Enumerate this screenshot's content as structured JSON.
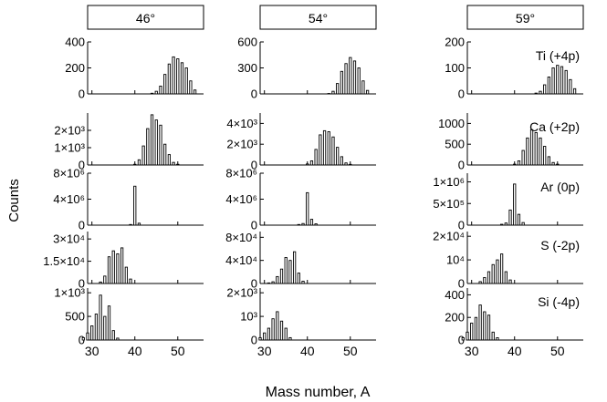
{
  "figure": {
    "ylabel": "Counts",
    "xlabel": "Mass number, A"
  },
  "chart_data": {
    "type": "bar",
    "xlabel": "Mass number, A",
    "ylabel": "Counts",
    "xlim": [
      29,
      56
    ],
    "xticks": [
      30,
      40,
      50
    ],
    "columns": [
      "46°",
      "54°",
      "59°"
    ],
    "rows": [
      "Ti (+4p)",
      "Ca (+2p)",
      "Ar (0p)",
      "S (-2p)",
      "Si (-4p)"
    ],
    "panels": [
      {
        "column": "46°",
        "row": "Ti (+4p)",
        "ylim": [
          0,
          400
        ],
        "ytick_values": [
          0,
          200,
          400
        ],
        "ytick_labels": [
          "0",
          "200",
          "400"
        ],
        "x": [
          44,
          45,
          46,
          47,
          48,
          49,
          50,
          51,
          52,
          53,
          54
        ],
        "values": [
          5,
          20,
          60,
          150,
          230,
          285,
          270,
          240,
          200,
          100,
          30
        ]
      },
      {
        "column": "54°",
        "row": "Ti (+4p)",
        "ylim": [
          0,
          600
        ],
        "ytick_values": [
          0,
          300,
          600
        ],
        "ytick_labels": [
          "0",
          "300",
          "600"
        ],
        "x": [
          45,
          46,
          47,
          48,
          49,
          50,
          51,
          52,
          53,
          54
        ],
        "values": [
          5,
          30,
          120,
          260,
          350,
          420,
          380,
          300,
          150,
          40
        ]
      },
      {
        "column": "59°",
        "row": "Ti (+4p)",
        "ylim": [
          0,
          200
        ],
        "ytick_values": [
          0,
          100,
          200
        ],
        "ytick_labels": [
          "0",
          "100",
          "200"
        ],
        "x": [
          45,
          46,
          47,
          48,
          49,
          50,
          51,
          52,
          53,
          54
        ],
        "values": [
          3,
          10,
          35,
          65,
          100,
          110,
          105,
          90,
          55,
          20
        ]
      },
      {
        "column": "46°",
        "row": "Ca (+2p)",
        "ylim": [
          0,
          3000
        ],
        "ytick_values": [
          0,
          1000,
          2000
        ],
        "ytick_labels": [
          "0",
          "1×10³",
          "2×10³"
        ],
        "x": [
          40,
          41,
          42,
          43,
          44,
          45,
          46,
          47,
          48,
          49,
          50
        ],
        "values": [
          40,
          300,
          1100,
          2100,
          2900,
          2600,
          2300,
          1200,
          600,
          150,
          40
        ]
      },
      {
        "column": "54°",
        "row": "Ca (+2p)",
        "ylim": [
          0,
          5000
        ],
        "ytick_values": [
          0,
          2000,
          4000
        ],
        "ytick_labels": [
          "0",
          "2×10³",
          "4×10³"
        ],
        "x": [
          40,
          41,
          42,
          43,
          44,
          45,
          46,
          47,
          48,
          49,
          50
        ],
        "values": [
          100,
          400,
          1500,
          2900,
          3300,
          3200,
          2700,
          1700,
          800,
          200,
          60
        ]
      },
      {
        "column": "59°",
        "row": "Ca (+2p)",
        "ylim": [
          0,
          1250
        ],
        "ytick_values": [
          0,
          500,
          1000
        ],
        "ytick_labels": [
          "0",
          "500",
          "1000"
        ],
        "x": [
          40,
          41,
          42,
          43,
          44,
          45,
          46,
          47,
          48,
          49,
          50
        ],
        "values": [
          20,
          100,
          350,
          650,
          850,
          780,
          650,
          450,
          200,
          60,
          20
        ]
      },
      {
        "column": "46°",
        "row": "Ar (0p)",
        "ylim": [
          0,
          8000000
        ],
        "ytick_values": [
          0,
          4000000,
          8000000
        ],
        "ytick_labels": [
          "0",
          "4×10⁶",
          "8×10⁶"
        ],
        "x": [
          39,
          40,
          41
        ],
        "values": [
          100000,
          6000000,
          300000
        ]
      },
      {
        "column": "54°",
        "row": "Ar (0p)",
        "ylim": [
          0,
          8000000
        ],
        "ytick_values": [
          0,
          4000000,
          8000000
        ],
        "ytick_labels": [
          "0",
          "4×10⁶",
          "8×10⁶"
        ],
        "x": [
          38,
          39,
          40,
          41,
          42
        ],
        "values": [
          100000,
          250000,
          5000000,
          900000,
          200000
        ]
      },
      {
        "column": "59°",
        "row": "Ar (0p)",
        "ylim": [
          0,
          1200000
        ],
        "ytick_values": [
          0,
          500000,
          1000000
        ],
        "ytick_labels": [
          "0",
          "5×10⁵",
          "1×10⁶"
        ],
        "x": [
          37,
          38,
          39,
          40,
          41,
          42
        ],
        "values": [
          20000,
          50000,
          350000,
          950000,
          250000,
          60000
        ]
      },
      {
        "column": "46°",
        "row": "S (-2p)",
        "ylim": [
          0,
          35000
        ],
        "ytick_values": [
          0,
          15000,
          30000
        ],
        "ytick_labels": [
          "0",
          "1.5×10⁴",
          "3×10⁴"
        ],
        "x": [
          32,
          33,
          34,
          35,
          36,
          37,
          38,
          39
        ],
        "values": [
          1000,
          5000,
          18000,
          22000,
          20000,
          24000,
          11000,
          3000
        ]
      },
      {
        "column": "54°",
        "row": "S (-2p)",
        "ylim": [
          0,
          90000
        ],
        "ytick_values": [
          0,
          40000,
          80000
        ],
        "ytick_labels": [
          "0",
          "4×10⁴",
          "8×10⁴"
        ],
        "x": [
          31,
          32,
          33,
          34,
          35,
          36,
          37,
          38,
          39
        ],
        "values": [
          1000,
          3000,
          12000,
          25000,
          45000,
          40000,
          55000,
          18000,
          4000
        ]
      },
      {
        "column": "59°",
        "row": "S (-2p)",
        "ylim": [
          0,
          22000
        ],
        "ytick_values": [
          0,
          10000,
          20000
        ],
        "ytick_labels": [
          "0",
          "10⁴",
          "2×10⁴"
        ],
        "x": [
          32,
          33,
          34,
          35,
          36,
          37,
          38,
          39
        ],
        "values": [
          800,
          2500,
          5000,
          8000,
          10000,
          12500,
          5000,
          1500
        ]
      },
      {
        "column": "46°",
        "row": "Si (-4p)",
        "ylim": [
          0,
          1100
        ],
        "ytick_values": [
          0,
          500,
          1000
        ],
        "ytick_labels": [
          "0",
          "500",
          "1×10³"
        ],
        "x": [
          28,
          29,
          30,
          31,
          32,
          33,
          34,
          35,
          36
        ],
        "values": [
          50,
          150,
          300,
          550,
          950,
          500,
          720,
          200,
          40
        ]
      },
      {
        "column": "54°",
        "row": "Si (-4p)",
        "ylim": [
          0,
          2200
        ],
        "ytick_values": [
          0,
          1000,
          2000
        ],
        "ytick_labels": [
          "0",
          "10³",
          "2×10³"
        ],
        "x": [
          29,
          30,
          31,
          32,
          33,
          34,
          35,
          36
        ],
        "values": [
          100,
          300,
          500,
          900,
          1200,
          800,
          500,
          100
        ]
      },
      {
        "column": "59°",
        "row": "Si (-4p)",
        "ylim": [
          0,
          460
        ],
        "ytick_values": [
          0,
          200,
          400
        ],
        "ytick_labels": [
          "0",
          "200",
          "400"
        ],
        "x": [
          28,
          29,
          30,
          31,
          32,
          33,
          34,
          35,
          36
        ],
        "values": [
          20,
          70,
          150,
          200,
          310,
          250,
          220,
          70,
          20
        ]
      }
    ]
  }
}
